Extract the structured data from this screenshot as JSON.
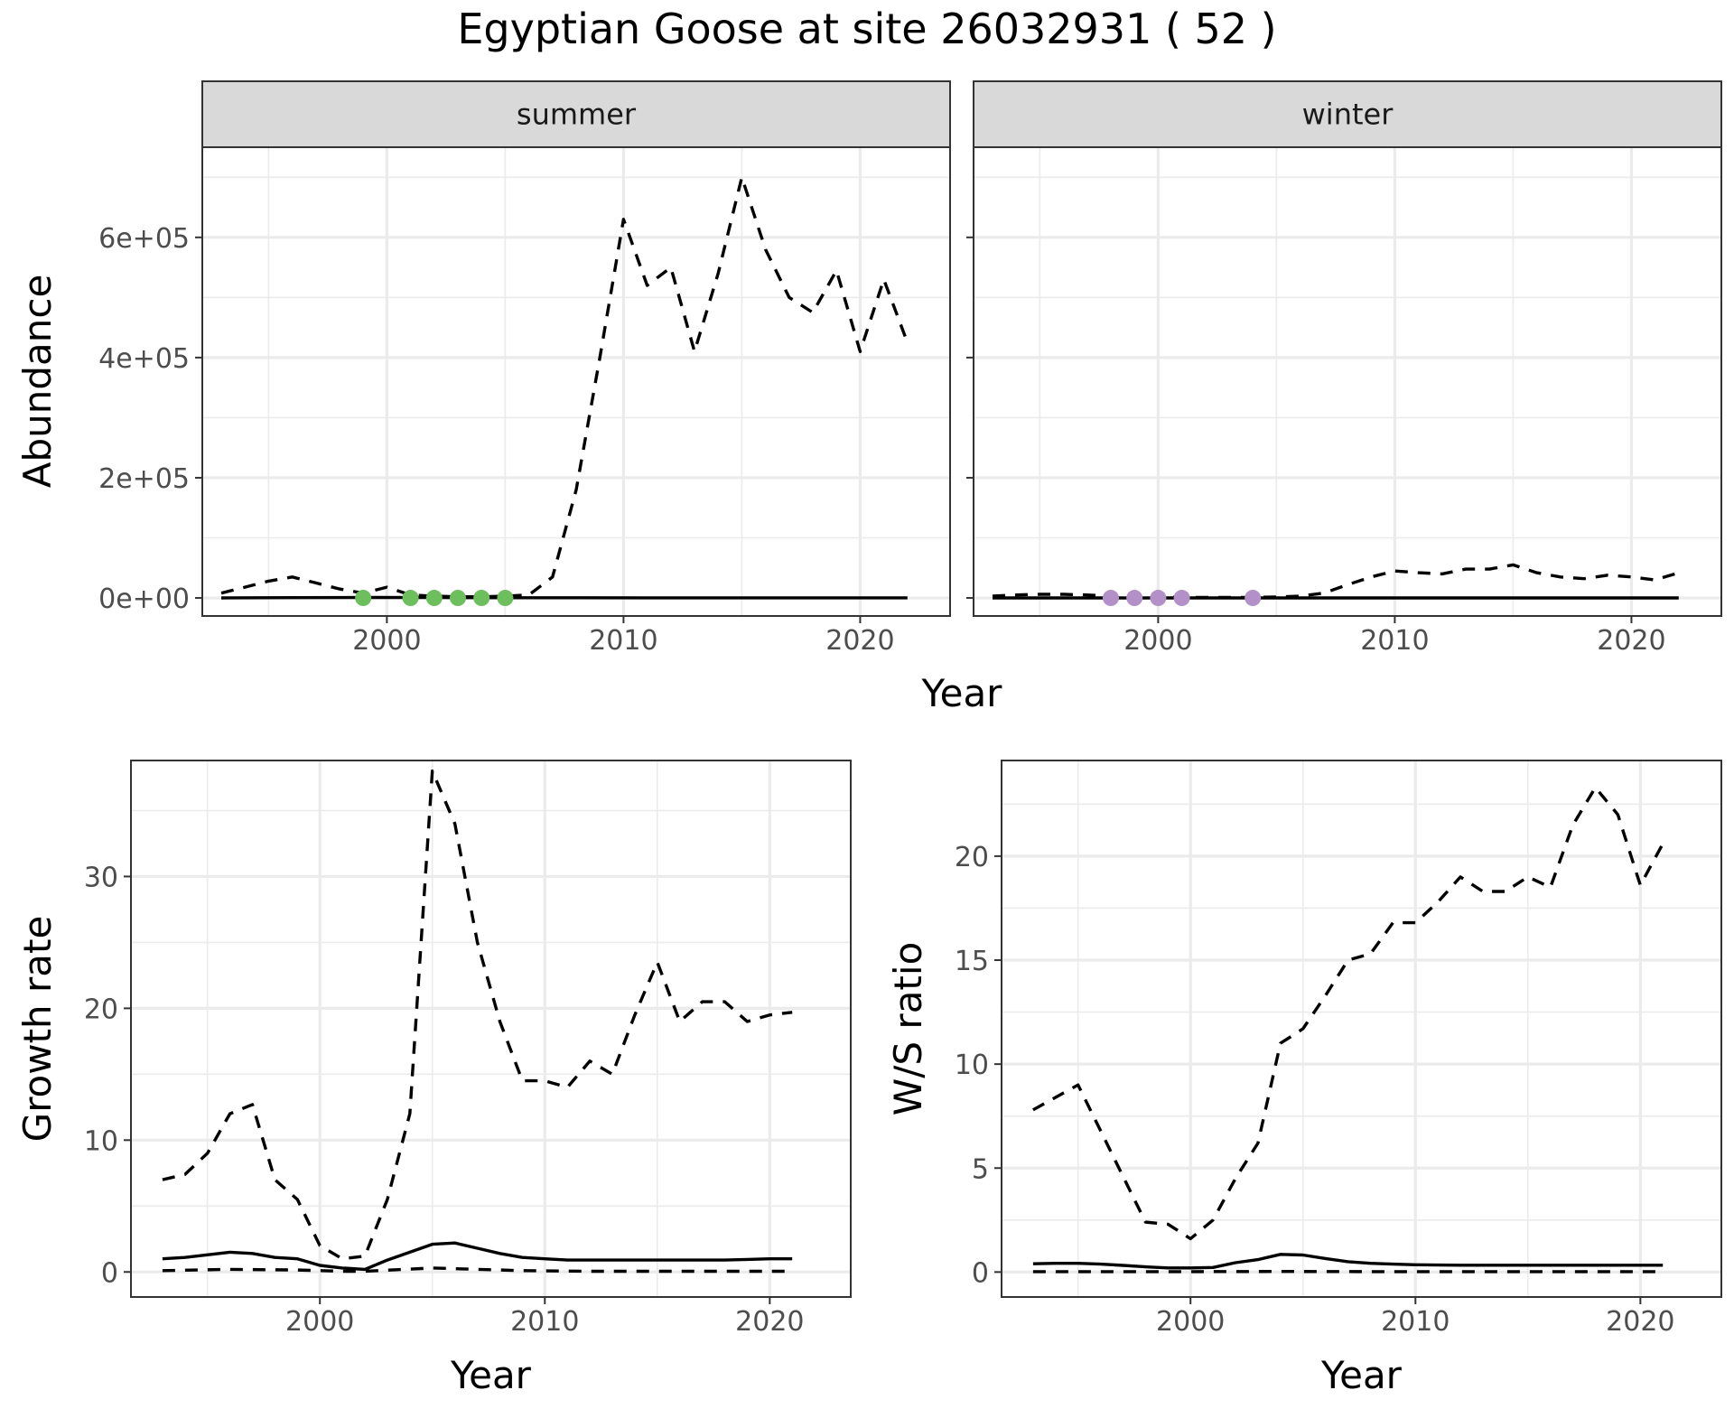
{
  "figure": {
    "title": "Egyptian Goose at site 26032931 ( 52 )"
  },
  "chart_data": [
    {
      "id": "abundance-summer",
      "type": "line",
      "strip": "summer",
      "xlabel": "Year",
      "ylabel": "Abundance",
      "shared_xlabel": true,
      "xlim": [
        1992.2,
        2023.8
      ],
      "ylim": [
        -30000,
        750000
      ],
      "xticks": [
        2000,
        2010,
        2020
      ],
      "yticks": [
        0,
        200000,
        400000,
        600000
      ],
      "ytick_labels": [
        "0e+00",
        "2e+05",
        "4e+05",
        "6e+05"
      ],
      "series": [
        {
          "style": "solid",
          "x": [
            1993,
            1996,
            1999,
            2002,
            2005,
            2008,
            2011,
            2014,
            2017,
            2020,
            2022
          ],
          "y": [
            0,
            500,
            800,
            600,
            400,
            300,
            200,
            200,
            200,
            200,
            200
          ]
        },
        {
          "style": "dashed",
          "x": [
            1993,
            1994,
            1995,
            1996,
            1997,
            1998,
            1999,
            2000,
            2001,
            2002,
            2003,
            2004,
            2005,
            2006,
            2007,
            2008,
            2009,
            2010,
            2011,
            2012,
            2013,
            2014,
            2015,
            2016,
            2017,
            2018,
            2019,
            2020,
            2021,
            2022
          ],
          "y": [
            8000,
            18000,
            28000,
            35000,
            25000,
            15000,
            8000,
            18000,
            5000,
            3000,
            2000,
            2000,
            3000,
            5000,
            35000,
            180000,
            400000,
            630000,
            520000,
            550000,
            410000,
            540000,
            700000,
            580000,
            500000,
            475000,
            545000,
            410000,
            530000,
            425000
          ]
        }
      ],
      "points": {
        "color": "#6cbf5c",
        "x": [
          1999,
          2001,
          2002,
          2003,
          2004,
          2005
        ],
        "y": [
          0,
          0,
          0,
          0,
          0,
          0
        ]
      }
    },
    {
      "id": "abundance-winter",
      "type": "line",
      "strip": "winter",
      "xlim": [
        1992.2,
        2023.8
      ],
      "ylim": [
        -30000,
        750000
      ],
      "xticks": [
        2000,
        2010,
        2020
      ],
      "yticks": [
        0,
        200000,
        400000,
        600000
      ],
      "series": [
        {
          "style": "solid",
          "x": [
            1993,
            2000,
            2005,
            2010,
            2015,
            2022
          ],
          "y": [
            0,
            0,
            0,
            0,
            0,
            0
          ]
        },
        {
          "style": "dashed",
          "x": [
            1993,
            1994,
            1995,
            1996,
            1997,
            1998,
            1999,
            2000,
            2001,
            2002,
            2003,
            2004,
            2005,
            2006,
            2007,
            2008,
            2009,
            2010,
            2011,
            2012,
            2013,
            2014,
            2015,
            2016,
            2017,
            2018,
            2019,
            2020,
            2021,
            2022
          ],
          "y": [
            3000,
            5000,
            6000,
            6000,
            5000,
            3000,
            2000,
            1500,
            1000,
            1000,
            1000,
            1000,
            1500,
            3000,
            8000,
            22000,
            35000,
            45000,
            42000,
            40000,
            48000,
            48000,
            55000,
            42000,
            35000,
            32000,
            38000,
            35000,
            30000,
            42000
          ]
        }
      ],
      "points": {
        "color": "#b391c8",
        "x": [
          1998,
          1999,
          2000,
          2001,
          2004
        ],
        "y": [
          0,
          0,
          0,
          0,
          0
        ]
      }
    },
    {
      "id": "growth-rate",
      "type": "line",
      "xlabel": "Year",
      "ylabel": "Growth rate",
      "xlim": [
        1991.6,
        2023.6
      ],
      "ylim": [
        -1.9,
        38.8
      ],
      "xticks": [
        2000,
        2010,
        2020
      ],
      "yticks": [
        0,
        10,
        20,
        30
      ],
      "series": [
        {
          "style": "dashed",
          "x": [
            1993,
            1994,
            1995,
            1996,
            1997,
            1998,
            1999,
            2000,
            2001,
            2002,
            2003,
            2004,
            2005,
            2006,
            2007,
            2008,
            2009,
            2010,
            2011,
            2012,
            2013,
            2014,
            2015,
            2016,
            2017,
            2018,
            2019,
            2020,
            2021
          ],
          "y": [
            7,
            7.4,
            9,
            12,
            12.7,
            7,
            5.5,
            2,
            1,
            1.2,
            5.5,
            12,
            38,
            34,
            25,
            19,
            14.5,
            14.5,
            14,
            16,
            15,
            19.5,
            23.5,
            19,
            20.5,
            20.5,
            19,
            19.5,
            19.7
          ]
        },
        {
          "style": "solid",
          "x": [
            1993,
            1994,
            1995,
            1996,
            1997,
            1998,
            1999,
            2000,
            2001,
            2002,
            2003,
            2004,
            2005,
            2006,
            2007,
            2008,
            2009,
            2010,
            2011,
            2012,
            2013,
            2014,
            2015,
            2016,
            2017,
            2018,
            2019,
            2020,
            2021
          ],
          "y": [
            1,
            1.1,
            1.3,
            1.5,
            1.4,
            1.1,
            1,
            0.5,
            0.3,
            0.2,
            0.9,
            1.5,
            2.1,
            2.2,
            1.8,
            1.4,
            1.1,
            1,
            0.9,
            0.9,
            0.9,
            0.9,
            0.9,
            0.9,
            0.9,
            0.9,
            0.95,
            1,
            1
          ]
        },
        {
          "style": "dashed",
          "x": [
            1993,
            1996,
            1999,
            2001,
            2002,
            2005,
            2007,
            2009,
            2012,
            2015,
            2018,
            2021
          ],
          "y": [
            0.1,
            0.2,
            0.15,
            0.05,
            0.05,
            0.3,
            0.2,
            0.1,
            0.05,
            0.05,
            0.05,
            0.05
          ]
        }
      ]
    },
    {
      "id": "ws-ratio",
      "type": "line",
      "xlabel": "Year",
      "ylabel": "W/S ratio",
      "xlim": [
        1991.6,
        2023.6
      ],
      "ylim": [
        -1.2,
        24.6
      ],
      "xticks": [
        2000,
        2010,
        2020
      ],
      "yticks": [
        0,
        5,
        10,
        15,
        20
      ],
      "series": [
        {
          "style": "dashed",
          "x": [
            1993,
            1994,
            1995,
            1996,
            1997,
            1998,
            1999,
            2000,
            2001,
            2002,
            2003,
            2004,
            2005,
            2006,
            2007,
            2008,
            2009,
            2010,
            2011,
            2012,
            2013,
            2014,
            2015,
            2016,
            2017,
            2018,
            2019,
            2020,
            2021
          ],
          "y": [
            7.8,
            8.4,
            9,
            6.8,
            4.6,
            2.4,
            2.3,
            1.6,
            2.5,
            4.5,
            6.2,
            11,
            11.7,
            13.3,
            15,
            15.3,
            16.8,
            16.8,
            17.8,
            19,
            18.3,
            18.3,
            19,
            18.5,
            21.5,
            23.3,
            22,
            18.6,
            20.6
          ]
        },
        {
          "style": "solid",
          "x": [
            1993,
            1994,
            1995,
            1996,
            1997,
            1998,
            1999,
            2000,
            2001,
            2002,
            2003,
            2004,
            2005,
            2006,
            2007,
            2008,
            2009,
            2010,
            2012,
            2014,
            2016,
            2018,
            2020,
            2021
          ],
          "y": [
            0.4,
            0.42,
            0.42,
            0.38,
            0.32,
            0.25,
            0.2,
            0.2,
            0.22,
            0.45,
            0.6,
            0.85,
            0.82,
            0.65,
            0.5,
            0.42,
            0.38,
            0.35,
            0.33,
            0.33,
            0.33,
            0.33,
            0.33,
            0.33
          ]
        },
        {
          "style": "dashed",
          "x": [
            1993,
            1997,
            2000,
            2004,
            2008,
            2012,
            2016,
            2021
          ],
          "y": [
            0.02,
            0.02,
            0.02,
            0.03,
            0.02,
            0.02,
            0.02,
            0.02
          ]
        }
      ]
    }
  ]
}
